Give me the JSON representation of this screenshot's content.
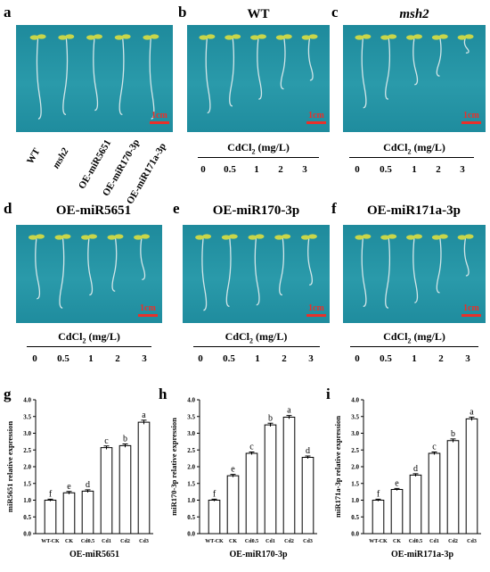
{
  "panels": {
    "a": {
      "letter": "a",
      "labels": [
        "WT",
        "msh2",
        "OE-miR5651",
        "OE-miR170-3p",
        "OE-miR171a-3p"
      ],
      "scale": "1cm"
    },
    "b": {
      "letter": "b",
      "title": "WT",
      "scale": "1cm",
      "cd_label": "CdCl",
      "cd_sub": "2",
      "cd_unit": " (mg/L)",
      "concentrations": [
        "0",
        "0.5",
        "1",
        "2",
        "3"
      ]
    },
    "c": {
      "letter": "c",
      "title": "msh2",
      "scale": "1cm",
      "cd_label": "CdCl",
      "cd_sub": "2",
      "cd_unit": " (mg/L)",
      "concentrations": [
        "0",
        "0.5",
        "1",
        "2",
        "3"
      ]
    },
    "d": {
      "letter": "d",
      "title": "OE-miR5651",
      "scale": "1cm",
      "cd_label": "CdCl",
      "cd_sub": "2",
      "cd_unit": " (mg/L)",
      "concentrations": [
        "0",
        "0.5",
        "1",
        "2",
        "3"
      ]
    },
    "e": {
      "letter": "e",
      "title": "OE-miR170-3p",
      "scale": "1cm",
      "cd_label": "CdCl",
      "cd_sub": "2",
      "cd_unit": " (mg/L)",
      "concentrations": [
        "0",
        "0.5",
        "1",
        "2",
        "3"
      ]
    },
    "f": {
      "letter": "f",
      "title": "OE-miR171a-3p",
      "scale": "1cm",
      "cd_label": "CdCl",
      "cd_sub": "2",
      "cd_unit": " (mg/L)",
      "concentrations": [
        "0",
        "0.5",
        "1",
        "2",
        "3"
      ]
    },
    "g": {
      "letter": "g"
    },
    "h": {
      "letter": "h"
    },
    "i": {
      "letter": "i"
    }
  },
  "colors": {
    "photo_bg": "#1e8a9c",
    "scale_bar": "#e8312a",
    "root": "#e6eef0",
    "leaf": "#c8d64a"
  },
  "chart_data": [
    {
      "type": "bar",
      "panel": "g",
      "categories": [
        "WT-CK",
        "CK",
        "Cd0.5",
        "Cd1",
        "Cd2",
        "Cd3"
      ],
      "values": [
        1.0,
        1.22,
        1.27,
        2.57,
        2.63,
        3.33
      ],
      "errors": [
        0.03,
        0.04,
        0.04,
        0.05,
        0.05,
        0.06
      ],
      "letters": [
        "f",
        "e",
        "d",
        "c",
        "b",
        "a"
      ],
      "ylabel": "miR5651 relative expression",
      "xlabel": "OE-miR5651",
      "ylim": [
        0,
        4.0
      ],
      "yticks": [
        "0.0",
        "0.5",
        "1.0",
        "1.5",
        "2.0",
        "2.5",
        "3.0",
        "3.5",
        "4.0"
      ]
    },
    {
      "type": "bar",
      "panel": "h",
      "categories": [
        "WT-CK",
        "CK",
        "Cd0.5",
        "Cd1",
        "Cd2",
        "Cd3"
      ],
      "values": [
        1.0,
        1.73,
        2.4,
        3.25,
        3.48,
        2.28
      ],
      "errors": [
        0.03,
        0.04,
        0.04,
        0.05,
        0.05,
        0.04
      ],
      "letters": [
        "f",
        "e",
        "c",
        "b",
        "a",
        "d"
      ],
      "ylabel": "miR170-3p relative expression",
      "xlabel": "OE-miR170-3p",
      "ylim": [
        0,
        4.0
      ],
      "yticks": [
        "0.0",
        "0.5",
        "1.0",
        "1.5",
        "2.0",
        "2.5",
        "3.0",
        "3.5",
        "4.0"
      ]
    },
    {
      "type": "bar",
      "panel": "i",
      "categories": [
        "WT-CK",
        "CK",
        "Cd0.5",
        "Cd1",
        "Cd2",
        "Cd3"
      ],
      "values": [
        1.0,
        1.32,
        1.75,
        2.4,
        2.78,
        3.43
      ],
      "errors": [
        0.03,
        0.03,
        0.04,
        0.04,
        0.05,
        0.05
      ],
      "letters": [
        "f",
        "e",
        "d",
        "c",
        "b",
        "a"
      ],
      "ylabel": "miR171a-3p relative expression",
      "xlabel": "OE-miR171a-3p",
      "ylim": [
        0,
        4.0
      ],
      "yticks": [
        "0.0",
        "0.5",
        "1.0",
        "1.5",
        "2.0",
        "2.5",
        "3.0",
        "3.5",
        "4.0"
      ]
    }
  ]
}
